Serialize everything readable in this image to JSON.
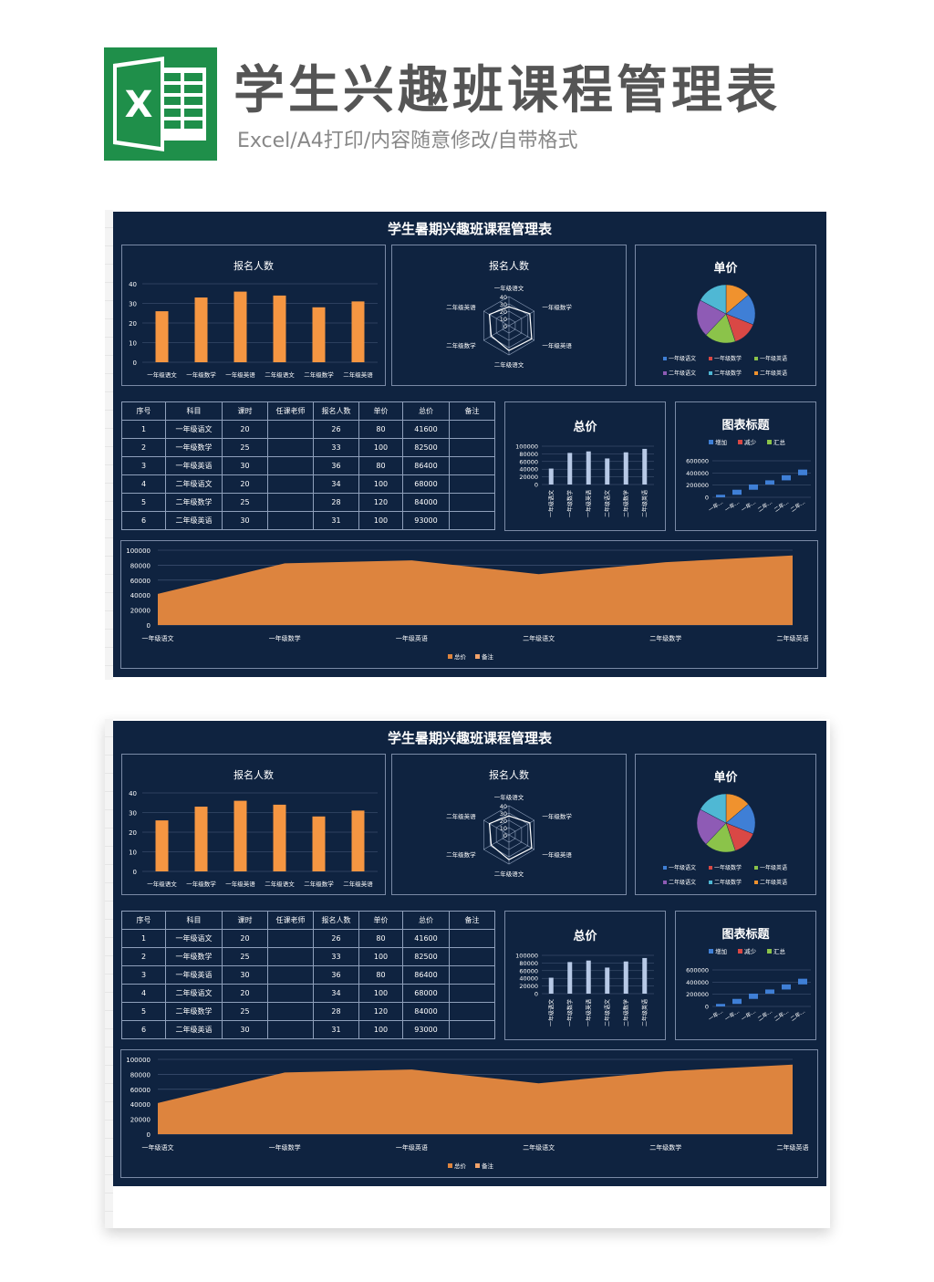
{
  "header": {
    "title": "学生兴趣班课程管理表",
    "subtitle": "Excel/A4打印/内容随意修改/自带格式",
    "logo_letter": "X"
  },
  "dashboard": {
    "title": "学生暑期兴趣班课程管理表",
    "colors": {
      "bg": "#0f2340",
      "bar_orange": "#f59642",
      "area_orange": "#dd843e",
      "col_blue": "#b7c9e6",
      "pie": [
        "#3f7fd6",
        "#d94845",
        "#8bc34a",
        "#8e5bb5",
        "#4fb8d4",
        "#f0922e"
      ]
    },
    "bar_panel": {
      "title": "报名人数",
      "chart_data": {
        "type": "bar",
        "categories": [
          "一年级语文",
          "一年级数学",
          "一年级英语",
          "二年级语文",
          "二年级数学",
          "二年级英语"
        ],
        "values": [
          26,
          33,
          36,
          34,
          28,
          31
        ],
        "ylim": [
          0,
          40
        ],
        "yticks": [
          "0",
          "10",
          "20",
          "30",
          "40"
        ]
      }
    },
    "radar_panel": {
      "title": "报名人数",
      "chart_data": {
        "type": "radar",
        "categories": [
          "一年级语文",
          "一年级数学",
          "一年级英语",
          "二年级语文",
          "二年级数学",
          "二年级英语"
        ],
        "values": [
          26,
          33,
          36,
          34,
          28,
          31
        ],
        "rlim": [
          0,
          40
        ],
        "rticks": [
          "0",
          "10",
          "20",
          "30",
          "40"
        ]
      }
    },
    "pie_panel": {
      "title": "单价",
      "chart_data": {
        "type": "pie",
        "categories": [
          "一年级语文",
          "一年级数学",
          "一年级英语",
          "二年级语文",
          "二年级数学",
          "二年级英语"
        ],
        "values": [
          80,
          100,
          80,
          100,
          120,
          100
        ]
      }
    },
    "table": {
      "headers": [
        "序号",
        "科目",
        "课时",
        "任课老师",
        "报名人数",
        "单价",
        "总价",
        "备注"
      ],
      "rows": [
        [
          "1",
          "一年级语文",
          "20",
          "",
          "26",
          "80",
          "41600",
          ""
        ],
        [
          "2",
          "一年级数学",
          "25",
          "",
          "33",
          "100",
          "82500",
          ""
        ],
        [
          "3",
          "一年级英语",
          "30",
          "",
          "36",
          "80",
          "86400",
          ""
        ],
        [
          "4",
          "二年级语文",
          "20",
          "",
          "34",
          "100",
          "68000",
          ""
        ],
        [
          "5",
          "二年级数学",
          "25",
          "",
          "28",
          "120",
          "84000",
          ""
        ],
        [
          "6",
          "二年级英语",
          "30",
          "",
          "31",
          "100",
          "93000",
          ""
        ]
      ]
    },
    "column_panel": {
      "title": "总价",
      "chart_data": {
        "type": "bar",
        "categories": [
          "一年级语文",
          "一年级数学",
          "一年级英语",
          "二年级语文",
          "二年级数学",
          "二年级英语"
        ],
        "values": [
          41600,
          82500,
          86400,
          68000,
          84000,
          93000
        ],
        "ylim": [
          0,
          100000
        ],
        "yticks": [
          "0",
          "20000",
          "40000",
          "60000",
          "80000",
          "100000"
        ]
      }
    },
    "waterfall_panel": {
      "title": "图表标题",
      "legend": [
        "增加",
        "减少",
        "汇总"
      ],
      "legend_colors": [
        "#3f7fd6",
        "#d94845",
        "#8bc34a"
      ],
      "chart_data": {
        "type": "waterfall",
        "categories": [
          "一年...",
          "一年...",
          "一年...",
          "二年...",
          "二年...",
          "二年..."
        ],
        "increments": [
          41600,
          82500,
          86400,
          68000,
          84000,
          93000
        ],
        "ylim": [
          0,
          600000
        ],
        "yticks": [
          "0",
          "200000",
          "400000",
          "600000"
        ]
      }
    },
    "area_panel": {
      "legend": [
        "总价",
        "备注"
      ],
      "legend_colors": [
        "#dd843e",
        "#f3a36a"
      ],
      "chart_data": {
        "type": "area",
        "categories": [
          "一年级语文",
          "一年级数学",
          "一年级英语",
          "二年级语文",
          "二年级数学",
          "二年级英语"
        ],
        "values": [
          41600,
          82500,
          86400,
          68000,
          84000,
          93000
        ],
        "ylim": [
          0,
          100000
        ],
        "yticks": [
          "0",
          "20000",
          "40000",
          "60000",
          "80000",
          "100000"
        ]
      }
    }
  }
}
